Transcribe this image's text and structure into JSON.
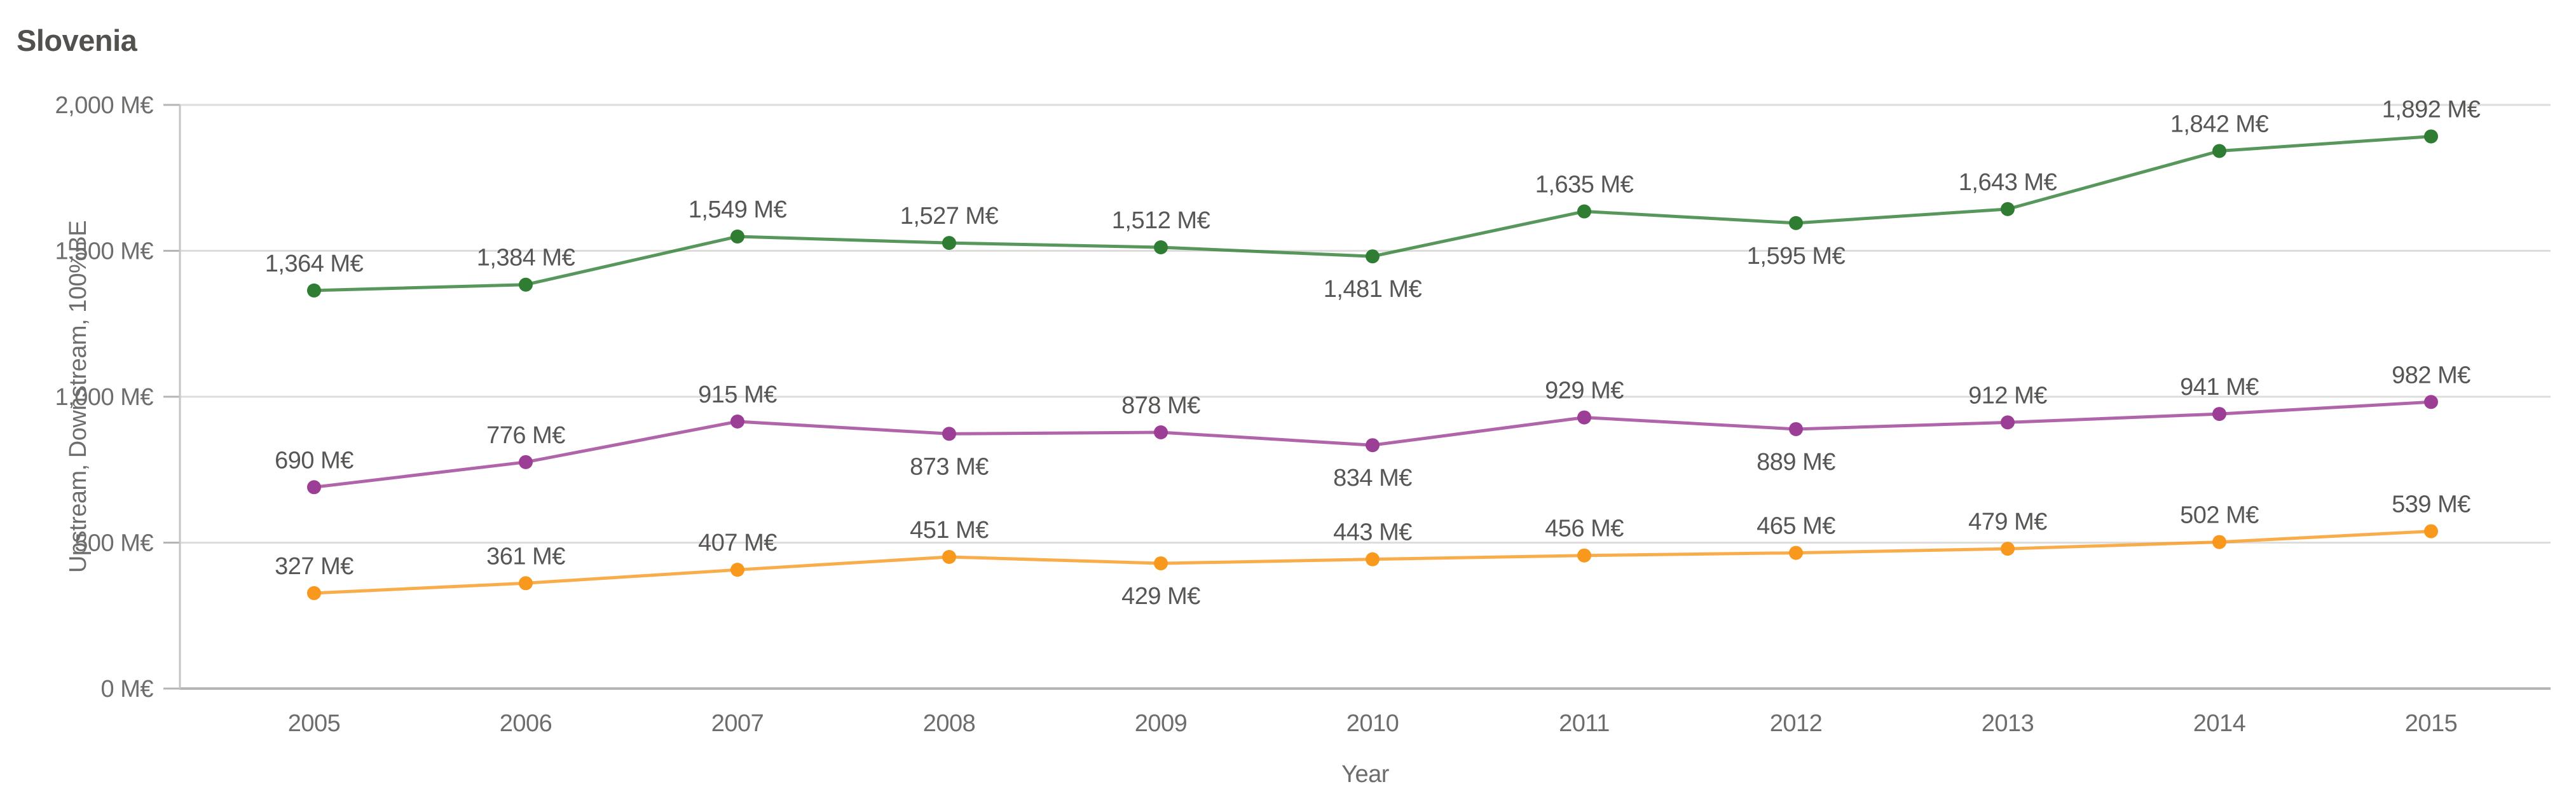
{
  "title": "Slovenia",
  "chart_data": {
    "type": "line",
    "title": "Slovenia",
    "x": [
      "2005",
      "2006",
      "2007",
      "2008",
      "2009",
      "2010",
      "2011",
      "2012",
      "2013",
      "2014",
      "2015"
    ],
    "xlabel": "Year",
    "ylabel": "Upstream, Downstream, 100%BE",
    "ylim": [
      0,
      2000
    ],
    "yticks": [
      {
        "value": 0,
        "label": "0 M€"
      },
      {
        "value": 500,
        "label": "500 M€"
      },
      {
        "value": 1000,
        "label": "1,000 M€"
      },
      {
        "value": 1500,
        "label": "1,500 M€"
      },
      {
        "value": 2000,
        "label": "2,000 M€"
      }
    ],
    "grid": true,
    "legend": "none",
    "series": [
      {
        "id": "green",
        "color": "#2e7d32",
        "values": [
          1364,
          1384,
          1549,
          1527,
          1512,
          1481,
          1635,
          1595,
          1643,
          1842,
          1892
        ],
        "labels": [
          "1,364 M€",
          "1,384 M€",
          "1,549 M€",
          "1,527 M€",
          "1,512 M€",
          "1,481 M€",
          "1,635 M€",
          "1,595 M€",
          "1,643 M€",
          "1,842 M€",
          "1,892 M€"
        ],
        "label_positions": [
          "above",
          "above",
          "above",
          "above",
          "above",
          "below",
          "above",
          "below",
          "above",
          "above",
          "above"
        ]
      },
      {
        "id": "purple",
        "color": "#9c3e96",
        "values": [
          690,
          776,
          915,
          873,
          878,
          834,
          929,
          889,
          912,
          941,
          982
        ],
        "labels": [
          "690 M€",
          "776 M€",
          "915 M€",
          "873 M€",
          "878 M€",
          "834 M€",
          "929 M€",
          "889 M€",
          "912 M€",
          "941 M€",
          "982 M€"
        ],
        "label_positions": [
          "above",
          "above",
          "above",
          "below",
          "above",
          "below",
          "above",
          "below",
          "above",
          "above",
          "above"
        ]
      },
      {
        "id": "orange",
        "color": "#f8981d",
        "values": [
          327,
          361,
          407,
          451,
          429,
          443,
          456,
          465,
          479,
          502,
          539
        ],
        "labels": [
          "327 M€",
          "361 M€",
          "407 M€",
          "451 M€",
          "429 M€",
          "443 M€",
          "456 M€",
          "465 M€",
          "479 M€",
          "502 M€",
          "539 M€"
        ],
        "label_positions": [
          "above",
          "above",
          "above",
          "above",
          "below",
          "above",
          "above",
          "above",
          "above",
          "above",
          "above"
        ]
      }
    ]
  }
}
